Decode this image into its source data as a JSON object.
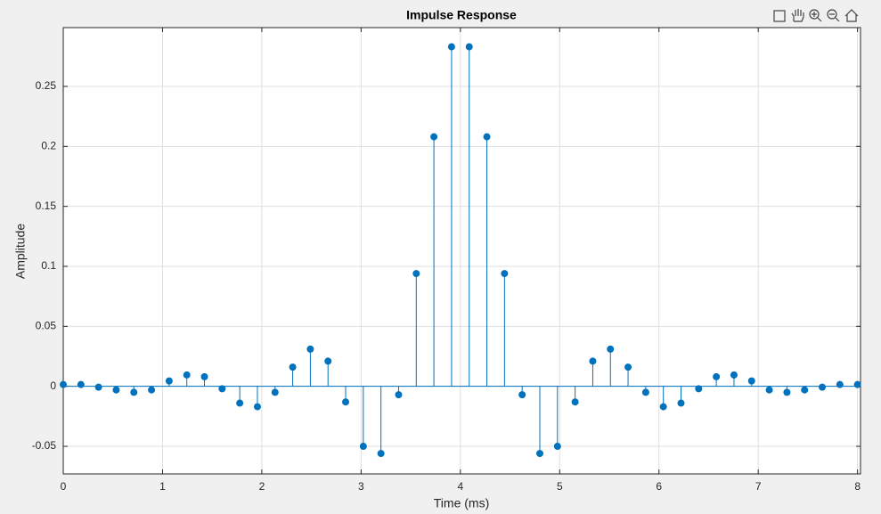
{
  "chart_data": {
    "type": "stem",
    "title": "Impulse Response",
    "xlabel": "Time (ms)",
    "ylabel": "Amplitude",
    "color": "#0072bd",
    "grid": true,
    "x": [
      0,
      0.1778,
      0.3556,
      0.5333,
      0.7111,
      0.8889,
      1.0667,
      1.2444,
      1.4222,
      1.6,
      1.7778,
      1.9556,
      2.1333,
      2.3111,
      2.4889,
      2.6667,
      2.8444,
      3.0222,
      3.2,
      3.3778,
      3.5556,
      3.7333,
      3.9111,
      4.0889,
      4.2667,
      4.4444,
      4.6222,
      4.8,
      4.9778,
      5.1556,
      5.3333,
      5.5111,
      5.6889,
      5.8667,
      6.0444,
      6.2222,
      6.4,
      6.5778,
      6.7556,
      6.9333,
      7.1111,
      7.2889,
      7.4667,
      7.6444,
      7.8222,
      8
    ],
    "values": [
      0.0015,
      0.0015,
      -0.0007,
      -0.003,
      -0.005,
      -0.003,
      0.0045,
      0.0095,
      0.008,
      -0.002,
      -0.014,
      -0.017,
      -0.005,
      0.016,
      0.031,
      0.021,
      -0.013,
      -0.05,
      -0.056,
      -0.007,
      0.094,
      0.208,
      0.283,
      0.283,
      0.208,
      0.094,
      -0.007,
      -0.056,
      -0.05,
      -0.013,
      0.021,
      0.031,
      0.016,
      -0.005,
      -0.017,
      -0.014,
      -0.002,
      0.008,
      0.0095,
      0.0045,
      -0.003,
      -0.005,
      -0.003,
      -0.0007,
      0.0015,
      0.0015
    ],
    "xlim": [
      0,
      8.03
    ],
    "xticks": [
      0,
      1,
      2,
      3,
      4,
      5,
      6,
      7,
      8
    ],
    "ylim": [
      -0.073,
      0.299
    ],
    "yticks": [
      -0.05,
      0,
      0.05,
      0.1,
      0.15,
      0.2,
      0.25
    ]
  }
}
